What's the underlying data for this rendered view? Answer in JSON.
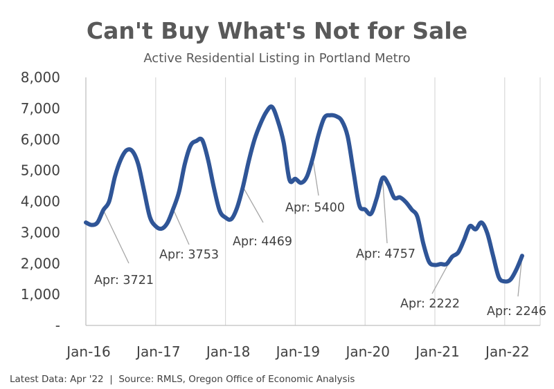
{
  "chart_data": {
    "type": "line",
    "title": "Can't Buy What's Not for Sale",
    "subtitle": "Active Residential Listing in Portland Metro",
    "source_note": "Latest Data: Apr '22  |  Source: RMLS, Oregon Office of Economic Analysis",
    "ylim": [
      0,
      8000
    ],
    "y_ticks": [
      0,
      1000,
      2000,
      3000,
      4000,
      5000,
      6000,
      7000,
      8000
    ],
    "y_tick_labels": [
      "-",
      "1,000",
      "2,000",
      "3,000",
      "4,000",
      "5,000",
      "6,000",
      "7,000",
      "8,000"
    ],
    "x_ticks": [
      "2016-01",
      "2017-01",
      "2018-01",
      "2019-01",
      "2020-01",
      "2021-01",
      "2022-01"
    ],
    "x_tick_labels": [
      "Jan-16",
      "Jan-17",
      "Jan-18",
      "Jan-19",
      "Jan-20",
      "Jan-21",
      "Jan-22"
    ],
    "grid": "vertical",
    "colors": {
      "line": "#2F5597",
      "grid": "#D9D9D9",
      "axis": "#BFBFBF",
      "text": "#404040",
      "title": "#595959",
      "leader": "#A6A6A6"
    },
    "series": [
      {
        "x": [
          "2016-01",
          "2016-02",
          "2016-03",
          "2016-04",
          "2016-05",
          "2016-06",
          "2016-07",
          "2016-08",
          "2016-09",
          "2016-10",
          "2016-11",
          "2016-12",
          "2017-01",
          "2017-02",
          "2017-03",
          "2017-04",
          "2017-05",
          "2017-06",
          "2017-07",
          "2017-08",
          "2017-09",
          "2017-10",
          "2017-11",
          "2017-12",
          "2018-01",
          "2018-02",
          "2018-03",
          "2018-04",
          "2018-05",
          "2018-06",
          "2018-07",
          "2018-08",
          "2018-09",
          "2018-10",
          "2018-11",
          "2018-12",
          "2019-01",
          "2019-02",
          "2019-03",
          "2019-04",
          "2019-05",
          "2019-06",
          "2019-07",
          "2019-08",
          "2019-09",
          "2019-10",
          "2019-11",
          "2019-12",
          "2020-01",
          "2020-02",
          "2020-03",
          "2020-04",
          "2020-05",
          "2020-06",
          "2020-07",
          "2020-08",
          "2020-09",
          "2020-10",
          "2020-11",
          "2020-12",
          "2021-01",
          "2021-02",
          "2021-03",
          "2021-04",
          "2021-05",
          "2021-06",
          "2021-07",
          "2021-08",
          "2021-09",
          "2021-10",
          "2021-11",
          "2021-12",
          "2022-01",
          "2022-02",
          "2022-03",
          "2022-04"
        ],
        "values": [
          3320,
          3240,
          3320,
          3721,
          4000,
          4800,
          5350,
          5650,
          5620,
          5200,
          4350,
          3500,
          3200,
          3120,
          3300,
          3753,
          4300,
          5200,
          5800,
          5950,
          5980,
          5350,
          4450,
          3700,
          3480,
          3430,
          3800,
          4469,
          5300,
          6000,
          6500,
          6880,
          7050,
          6600,
          5900,
          4700,
          4730,
          4600,
          4800,
          5400,
          6150,
          6700,
          6780,
          6750,
          6600,
          6100,
          4970,
          3880,
          3740,
          3600,
          4100,
          4757,
          4550,
          4120,
          4130,
          3980,
          3740,
          3500,
          2650,
          2050,
          1950,
          1980,
          1980,
          2222,
          2350,
          2750,
          3200,
          3100,
          3320,
          2980,
          2250,
          1550,
          1420,
          1480,
          1800,
          2246
        ]
      }
    ],
    "annotations": [
      {
        "x": "2016-04",
        "value": 3721,
        "label": "Apr: 3721"
      },
      {
        "x": "2017-04",
        "value": 3753,
        "label": "Apr: 3753"
      },
      {
        "x": "2018-04",
        "value": 4469,
        "label": "Apr: 4469"
      },
      {
        "x": "2019-04",
        "value": 5400,
        "label": "Apr: 5400"
      },
      {
        "x": "2020-04",
        "value": 4757,
        "label": "Apr: 4757"
      },
      {
        "x": "2021-04",
        "value": 2222,
        "label": "Apr: 2222"
      },
      {
        "x": "2022-04",
        "value": 2246,
        "label": "Apr: 2246"
      }
    ]
  }
}
